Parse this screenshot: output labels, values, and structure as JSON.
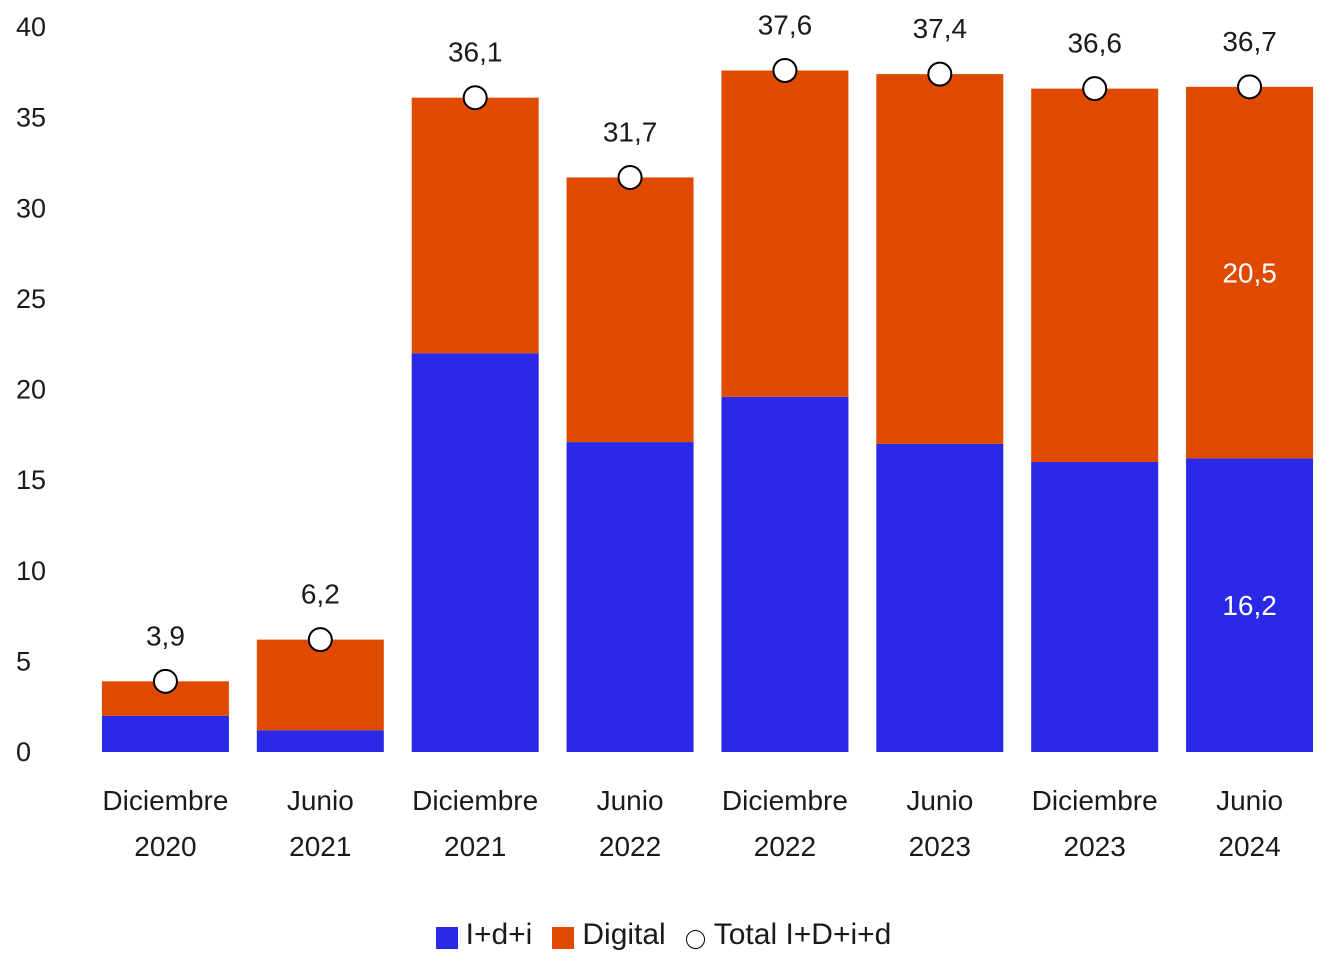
{
  "chart_data": {
    "type": "bar",
    "stacked": true,
    "categories": [
      [
        "Diciembre",
        "2020"
      ],
      [
        "Junio",
        "2021"
      ],
      [
        "Diciembre",
        "2021"
      ],
      [
        "Junio",
        "2022"
      ],
      [
        "Diciembre",
        "2022"
      ],
      [
        "Junio",
        "2023"
      ],
      [
        "Diciembre",
        "2023"
      ],
      [
        "Junio",
        "2024"
      ]
    ],
    "series": [
      {
        "name": "I+d+i",
        "color": "#2929e6",
        "values": [
          2.0,
          1.2,
          22.0,
          17.1,
          19.6,
          17.0,
          16.0,
          16.2
        ],
        "labels": [
          "",
          "",
          "",
          "",
          "",
          "",
          "",
          "16,2"
        ]
      },
      {
        "name": "Digital",
        "color": "#e04a00",
        "values": [
          1.9,
          5.0,
          14.1,
          14.6,
          18.0,
          20.4,
          20.6,
          20.5
        ],
        "labels": [
          "",
          "",
          "",
          "",
          "",
          "",
          "",
          "20,5"
        ]
      }
    ],
    "totals": {
      "name": "Total I+D+i+d",
      "values": [
        3.9,
        6.2,
        36.1,
        31.7,
        37.6,
        37.4,
        36.6,
        36.7
      ],
      "labels": [
        "3,9",
        "6,2",
        "36,1",
        "31,7",
        "37,6",
        "37,4",
        "36,6",
        "36,7"
      ]
    },
    "ylim": [
      0,
      40
    ],
    "yticks": [
      0,
      5,
      10,
      15,
      20,
      25,
      30,
      35,
      40
    ],
    "title": "",
    "xlabel": "",
    "ylabel": "",
    "grid": false,
    "legend_position": "bottom-center"
  }
}
